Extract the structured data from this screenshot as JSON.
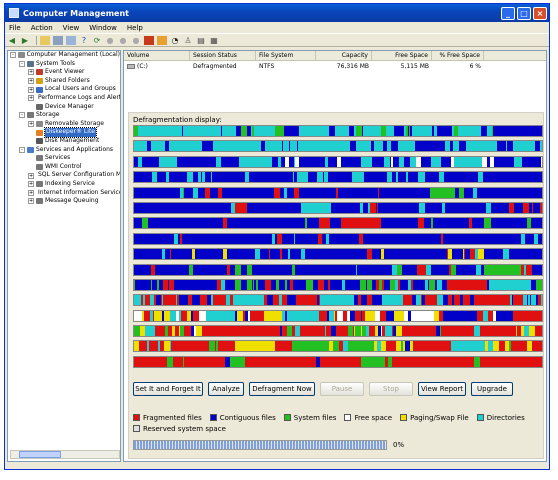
{
  "window": {
    "title": "Computer Management",
    "controls": [
      "_",
      "□",
      "×"
    ]
  },
  "menu": [
    "File",
    "Action",
    "View",
    "Window",
    "Help"
  ],
  "tree": [
    {
      "label": "Computer Management (Local)",
      "level": 0,
      "exp": "-",
      "color": "#8a8a8a"
    },
    {
      "label": "System Tools",
      "level": 1,
      "exp": "-",
      "color": "#5a6f8a"
    },
    {
      "label": "Event Viewer",
      "level": 2,
      "exp": "+",
      "color": "#c0392b"
    },
    {
      "label": "Shared Folders",
      "level": 2,
      "exp": "+",
      "color": "#d4a017"
    },
    {
      "label": "Local Users and Groups",
      "level": 2,
      "exp": "+",
      "color": "#3a6bc4"
    },
    {
      "label": "Performance Logs and Alerts",
      "level": 2,
      "exp": "+",
      "color": "#2e8b57"
    },
    {
      "label": "Device Manager",
      "level": 2,
      "exp": "",
      "color": "#666"
    },
    {
      "label": "Storage",
      "level": 1,
      "exp": "-",
      "color": "#777"
    },
    {
      "label": "Removable Storage",
      "level": 2,
      "exp": "+",
      "color": "#888"
    },
    {
      "label": "Diskeeper® Lite",
      "level": 2,
      "exp": "",
      "color": "#e67e22",
      "selected": true
    },
    {
      "label": "Disk Management",
      "level": 2,
      "exp": "",
      "color": "#555"
    },
    {
      "label": "Services and Applications",
      "level": 1,
      "exp": "-",
      "color": "#4a7bc8"
    },
    {
      "label": "Services",
      "level": 2,
      "exp": "",
      "color": "#777"
    },
    {
      "label": "WMI Control",
      "level": 2,
      "exp": "",
      "color": "#777"
    },
    {
      "label": "SQL Server Configuration Ma",
      "level": 2,
      "exp": "+",
      "color": "#a33"
    },
    {
      "label": "Indexing Service",
      "level": 2,
      "exp": "+",
      "color": "#777"
    },
    {
      "label": "Internet Information Service",
      "level": 2,
      "exp": "+",
      "color": "#4a7bc8"
    },
    {
      "label": "Message Queuing",
      "level": 2,
      "exp": "+",
      "color": "#777"
    }
  ],
  "volumes": {
    "headers": [
      "Volume",
      "Session Status",
      "File System",
      "Capacity",
      "Free Space",
      "% Free Space"
    ],
    "rows": [
      [
        "(C:)",
        "Defragmented",
        "NTFS",
        "76,316 MB",
        "5,115 MB",
        "6 %"
      ]
    ]
  },
  "defrag": {
    "label": "Defragmentation display:",
    "progress_pct": "0%",
    "progress": 0
  },
  "buttons": [
    {
      "label": "Set It and Forget It",
      "enabled": true
    },
    {
      "label": "Analyze",
      "enabled": true
    },
    {
      "label": "Defragment Now",
      "enabled": true
    },
    {
      "label": "Pause",
      "enabled": false
    },
    {
      "label": "Stop",
      "enabled": false
    },
    {
      "label": "View Report",
      "enabled": true
    },
    {
      "label": "Upgrade",
      "enabled": true
    }
  ],
  "legend": [
    {
      "label": "Fragmented files",
      "color": "#e01010"
    },
    {
      "label": "Contiguous files",
      "color": "#0000c8"
    },
    {
      "label": "System files",
      "color": "#22c022"
    },
    {
      "label": "Free space",
      "color": "#ffffff"
    },
    {
      "label": "Paging/Swap File",
      "color": "#f0e000"
    },
    {
      "label": "Directories",
      "color": "#20d0d0"
    },
    {
      "label": "Reserved system space",
      "color": "#e0e0e0"
    }
  ],
  "colors": {
    "fragmented": "#e01010",
    "contiguous": "#0000c8",
    "system": "#22c022",
    "free": "#ffffff",
    "paging": "#f0e000",
    "directory": "#20d0d0"
  }
}
